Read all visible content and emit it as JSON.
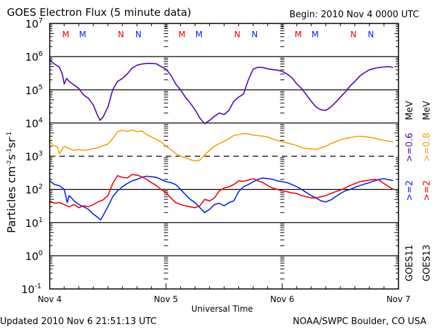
{
  "header": {
    "title": "GOES Electron Flux (5 minute data)",
    "begin": "Begin: 2010 Nov 4 0000 UTC"
  },
  "footer": {
    "updated": "Updated 2010 Nov  6 21:51:13 UTC",
    "credit": "NOAA/SWPC Boulder, CO USA"
  },
  "legend": {
    "goes11_label": "GOES11",
    "goes13_label": "GOES13",
    "goes11_e2": ">=2",
    "goes13_e2": ">=2",
    "goes11_e06": ">=0.6",
    "goes13_e08": ">=0.8",
    "unit": "MeV",
    "unit2": "MeV"
  },
  "colors": {
    "goes11_2mev": "#0022ee",
    "goes13_2mev": "#ee0000",
    "goes11_06mev": "#5500aa",
    "goes13_08mev": "#f5a000",
    "frame": "#000000"
  },
  "chart_data": {
    "type": "line",
    "title": "GOES Electron Flux (5 minute data)",
    "xlabel": "Universal Time",
    "ylabel": "Particles cm^-2 s^-1 sr^-1",
    "yscale": "log",
    "ylim": [
      0.1,
      10000000
    ],
    "xlim_hours": [
      0,
      72
    ],
    "x_ticks": [
      {
        "hour": 0,
        "label": "Nov 4"
      },
      {
        "hour": 24,
        "label": "Nov 5"
      },
      {
        "hour": 48,
        "label": "Nov 6"
      },
      {
        "hour": 72,
        "label": "Nov 7"
      }
    ],
    "y_ticks": [
      {
        "exp": 7,
        "base": "10",
        "sup": "7"
      },
      {
        "exp": 6,
        "base": "10",
        "sup": "6"
      },
      {
        "exp": 5,
        "base": "10",
        "sup": "5"
      },
      {
        "exp": 4,
        "base": "10",
        "sup": "4"
      },
      {
        "exp": 3,
        "base": "10",
        "sup": "3"
      },
      {
        "exp": 2,
        "base": "10",
        "sup": "2"
      },
      {
        "exp": 1,
        "base": "10",
        "sup": "1"
      },
      {
        "exp": 0,
        "base": "10",
        "sup": "0"
      },
      {
        "exp": -1,
        "base": "10",
        "sup": "-1"
      }
    ],
    "threshold_line": {
      "value": 1000,
      "style": "dashed"
    },
    "markers": [
      {
        "hour": 3.3,
        "label": "M",
        "series": "GOES13"
      },
      {
        "hour": 6.8,
        "label": "M",
        "series": "GOES11"
      },
      {
        "hour": 14.7,
        "label": "N",
        "series": "GOES13"
      },
      {
        "hour": 18.3,
        "label": "N",
        "series": "GOES11"
      },
      {
        "hour": 27.3,
        "label": "M",
        "series": "GOES13"
      },
      {
        "hour": 30.8,
        "label": "M",
        "series": "GOES11"
      },
      {
        "hour": 38.7,
        "label": "N",
        "series": "GOES13"
      },
      {
        "hour": 42.3,
        "label": "N",
        "series": "GOES11"
      },
      {
        "hour": 51.3,
        "label": "M",
        "series": "GOES13"
      },
      {
        "hour": 54.8,
        "label": "M",
        "series": "GOES11"
      },
      {
        "hour": 62.7,
        "label": "N",
        "series": "GOES13"
      },
      {
        "hour": 66.3,
        "label": "N",
        "series": "GOES11"
      }
    ],
    "series": [
      {
        "name": "GOES11 >=0.6 MeV",
        "color": "#5500aa",
        "hours": [
          0,
          1,
          2,
          2.6,
          3,
          3.5,
          4,
          5,
          6,
          7,
          8,
          9,
          9.8,
          10.4,
          11,
          12,
          13,
          14,
          15,
          16,
          17,
          18,
          19,
          20,
          21,
          22,
          23,
          24,
          25,
          26,
          27,
          28,
          29,
          30,
          31,
          32,
          33,
          34,
          35,
          36,
          37,
          38,
          39,
          40,
          41,
          42,
          43,
          44,
          45,
          46,
          47,
          48,
          49,
          50,
          51,
          52,
          53,
          54,
          55,
          56,
          57,
          58,
          59,
          60,
          61,
          62,
          63,
          64,
          65,
          66,
          67,
          68,
          69,
          70,
          70.9
        ],
        "values": [
          800000,
          600000,
          480000,
          300000,
          150000,
          220000,
          180000,
          140000,
          110000,
          70000,
          55000,
          35000,
          18000,
          12000,
          15000,
          30000,
          100000,
          180000,
          220000,
          300000,
          450000,
          550000,
          600000,
          620000,
          620000,
          610000,
          500000,
          420000,
          280000,
          150000,
          100000,
          60000,
          40000,
          25000,
          14000,
          9500,
          12000,
          16000,
          20000,
          18000,
          24000,
          45000,
          60000,
          75000,
          200000,
          420000,
          480000,
          470000,
          430000,
          410000,
          390000,
          360000,
          300000,
          230000,
          150000,
          110000,
          70000,
          45000,
          30000,
          25000,
          24000,
          30000,
          42000,
          60000,
          85000,
          130000,
          180000,
          260000,
          330000,
          400000,
          440000,
          470000,
          490000,
          500000,
          470000
        ]
      },
      {
        "name": "GOES13 >=0.8 MeV",
        "color": "#f5a000",
        "hours": [
          0,
          0.8,
          1.6,
          2,
          3,
          4,
          5,
          6,
          7,
          8,
          9,
          10,
          11,
          12,
          13,
          14,
          15,
          16,
          17,
          18,
          19,
          20,
          21,
          22,
          23,
          24,
          25,
          26,
          27,
          28,
          29,
          30,
          31,
          32,
          33,
          34,
          35,
          36,
          37,
          38,
          39,
          40,
          41,
          42,
          43,
          44,
          45,
          46,
          47,
          48,
          49,
          50,
          51,
          52,
          53,
          54,
          55,
          56,
          57,
          58,
          59,
          60,
          61,
          62,
          63,
          64,
          65,
          66,
          67,
          68,
          69,
          70,
          70.9
        ],
        "values": [
          2800,
          2100,
          1900,
          1200,
          2000,
          1700,
          1500,
          1600,
          1500,
          1550,
          1700,
          1800,
          2100,
          2300,
          3400,
          5500,
          6000,
          5600,
          6200,
          5500,
          5800,
          4500,
          3800,
          3200,
          2700,
          2000,
          1600,
          1200,
          1000,
          900,
          780,
          720,
          760,
          1100,
          1500,
          2000,
          2400,
          2800,
          3400,
          4200,
          4500,
          4800,
          4700,
          4300,
          4200,
          4000,
          3800,
          3300,
          3000,
          2700,
          2500,
          2300,
          2100,
          1800,
          1700,
          1650,
          1600,
          1800,
          2000,
          2400,
          2700,
          3100,
          3400,
          3600,
          3900,
          4000,
          3900,
          3700,
          3500,
          3200,
          3000,
          2800,
          2700
        ]
      },
      {
        "name": "GOES11 >=2 MeV",
        "color": "#0022ee",
        "hours": [
          0,
          1,
          2,
          3,
          3.6,
          4,
          4.5,
          5,
          6,
          7,
          8,
          9,
          10,
          10.5,
          11,
          11.5,
          12,
          13,
          14,
          15,
          16,
          17,
          18,
          19,
          20,
          21,
          22,
          23,
          24,
          25,
          26,
          27,
          28,
          29,
          30,
          31,
          32,
          33,
          34,
          35,
          36,
          37,
          38,
          39,
          40,
          41,
          42,
          43,
          44,
          45,
          46,
          47,
          48,
          49,
          50,
          51,
          52,
          53,
          54,
          55,
          56,
          57,
          58,
          59,
          60,
          61,
          62,
          63,
          64,
          65,
          66,
          67,
          68,
          69,
          70,
          70.9
        ],
        "values": [
          180,
          140,
          130,
          100,
          40,
          65,
          55,
          45,
          35,
          30,
          25,
          18,
          14,
          12,
          16,
          22,
          30,
          60,
          90,
          120,
          150,
          180,
          200,
          230,
          250,
          240,
          230,
          200,
          170,
          160,
          140,
          100,
          70,
          50,
          40,
          28,
          20,
          25,
          35,
          38,
          32,
          40,
          45,
          85,
          120,
          140,
          170,
          200,
          220,
          210,
          200,
          180,
          170,
          160,
          140,
          120,
          100,
          80,
          65,
          55,
          45,
          42,
          48,
          60,
          75,
          90,
          100,
          115,
          130,
          145,
          160,
          180,
          200,
          210,
          195,
          185
        ]
      },
      {
        "name": "GOES13 >=2 MeV",
        "color": "#ee0000",
        "hours": [
          0,
          1,
          2,
          3,
          4,
          5,
          6,
          7,
          8,
          9,
          10,
          11,
          12,
          13,
          14,
          15,
          16,
          17,
          18,
          19,
          20,
          21,
          22,
          23,
          24,
          25,
          26,
          27,
          28,
          29,
          30,
          31,
          32,
          33,
          34,
          35,
          36,
          37,
          38,
          39,
          40,
          41,
          42,
          43,
          44,
          45,
          46,
          47,
          48,
          49,
          50,
          51,
          52,
          53,
          54,
          55,
          56,
          57,
          58,
          59,
          60,
          61,
          62,
          63,
          64,
          65,
          66,
          67,
          68,
          69,
          70,
          70.9
        ],
        "values": [
          45,
          38,
          40,
          35,
          30,
          35,
          28,
          32,
          30,
          35,
          42,
          48,
          65,
          150,
          260,
          230,
          220,
          280,
          270,
          240,
          200,
          160,
          130,
          100,
          80,
          55,
          40,
          35,
          32,
          30,
          28,
          32,
          50,
          45,
          55,
          90,
          110,
          120,
          140,
          180,
          175,
          190,
          210,
          180,
          160,
          130,
          110,
          100,
          90,
          85,
          78,
          75,
          65,
          60,
          55,
          55,
          60,
          65,
          75,
          85,
          95,
          110,
          130,
          150,
          170,
          180,
          190,
          200,
          190,
          150,
          120,
          100
        ]
      }
    ]
  }
}
